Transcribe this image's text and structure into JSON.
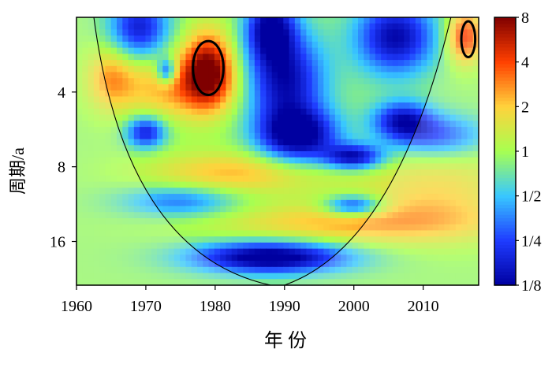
{
  "chart_data": {
    "type": "heatmap",
    "title": "",
    "xlabel": "年 份",
    "ylabel": "周期/a",
    "x_range": [
      1960,
      2018
    ],
    "x_ticks": [
      1960,
      1970,
      1980,
      1990,
      2000,
      2010
    ],
    "y_scale": "log2",
    "y_range": [
      2,
      24
    ],
    "y_ticks": [
      4,
      8,
      16
    ],
    "colorbar": {
      "scale": "log2",
      "range": [
        0.125,
        8
      ],
      "ticks": [
        {
          "value": 0.125,
          "label": "1/8"
        },
        {
          "value": 0.25,
          "label": "1/4"
        },
        {
          "value": 0.5,
          "label": "1/2"
        },
        {
          "value": 1,
          "label": "1"
        },
        {
          "value": 2,
          "label": "2"
        },
        {
          "value": 4,
          "label": "4"
        },
        {
          "value": 8,
          "label": "8"
        }
      ],
      "colors": [
        "#0000a0",
        "#1f3cff",
        "#38c8ff",
        "#a8ff50",
        "#ffd23c",
        "#ff4000",
        "#7f0000"
      ]
    },
    "background_power": 0.9,
    "power_features": [
      {
        "x": 1979,
        "period": 3.2,
        "sx": 2.5,
        "sy": 0.35,
        "power": 7
      },
      {
        "x": 1975,
        "period": 3.8,
        "sx": 6,
        "sy": 0.3,
        "power": 3
      },
      {
        "x": 1965,
        "period": 3.5,
        "sx": 2.5,
        "sy": 0.3,
        "power": 2.5
      },
      {
        "x": 2016,
        "period": 2.4,
        "sx": 1.8,
        "sy": 0.25,
        "power": 5
      },
      {
        "x": 1983,
        "period": 8.5,
        "sx": 9,
        "sy": 0.2,
        "power": 2.5
      },
      {
        "x": 2000,
        "period": 13.5,
        "sx": 14,
        "sy": 0.2,
        "power": 2.5
      },
      {
        "x": 2012,
        "period": 10,
        "sx": 8,
        "sy": 0.4,
        "power": 2
      },
      {
        "x": 1990,
        "period": 3.6,
        "sx": 4,
        "sy": 0.45,
        "power": 0.15
      },
      {
        "x": 1992,
        "period": 6.0,
        "sx": 4,
        "sy": 0.25,
        "power": 0.12
      },
      {
        "x": 1988,
        "period": 2.2,
        "sx": 2.5,
        "sy": 0.3,
        "power": 0.15
      },
      {
        "x": 1969,
        "period": 2.2,
        "sx": 3,
        "sy": 0.3,
        "power": 0.2
      },
      {
        "x": 2006,
        "period": 2.4,
        "sx": 4,
        "sy": 0.35,
        "power": 0.15
      },
      {
        "x": 1970,
        "period": 5.8,
        "sx": 2,
        "sy": 0.15,
        "power": 0.2
      },
      {
        "x": 2007,
        "period": 5.2,
        "sx": 3,
        "sy": 0.18,
        "power": 0.2
      },
      {
        "x": 2000,
        "period": 7.3,
        "sx": 3,
        "sy": 0.12,
        "power": 0.15
      },
      {
        "x": 2000,
        "period": 11.5,
        "sx": 3,
        "sy": 0.1,
        "power": 0.2
      },
      {
        "x": 1973,
        "period": 3.3,
        "sx": 1,
        "sy": 0.12,
        "power": 0.2
      },
      {
        "x": 1988,
        "period": 18.5,
        "sx": 8,
        "sy": 0.15,
        "power": 0.1
      },
      {
        "x": 1975,
        "period": 11,
        "sx": 6,
        "sy": 0.15,
        "power": 0.35
      },
      {
        "x": 2012,
        "period": 6.0,
        "sx": 5,
        "sy": 0.2,
        "power": 0.3
      }
    ],
    "significance_contours": [
      {
        "x": 1979,
        "period": 3.2,
        "rx": 2.2,
        "ry": 0.36
      },
      {
        "x": 2016.5,
        "period": 2.45,
        "rx": 1.0,
        "ry": 0.24
      }
    ],
    "cone_of_influence": {
      "apex_left_x": 1988,
      "apex_right_x": 1990,
      "apex_period": 24,
      "top_left_x": 1962.5,
      "top_right_x": 2014,
      "top_period": 2
    }
  }
}
